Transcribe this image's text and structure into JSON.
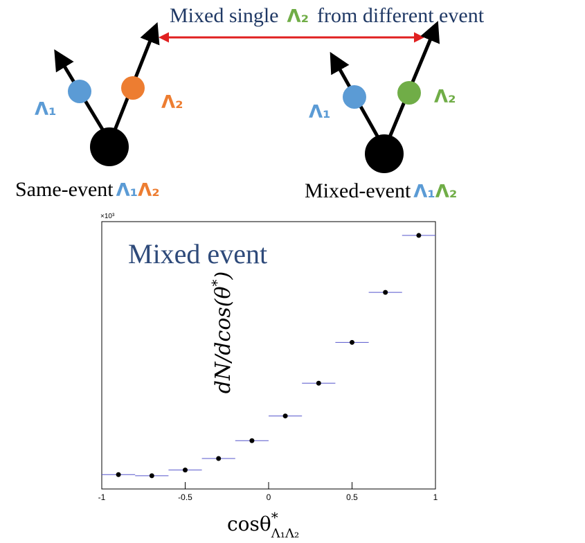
{
  "diagram": {
    "top_label": {
      "text1": "Mixed single",
      "lambda": "Λ₂",
      "text2": "from different event"
    },
    "same_event": {
      "l1": "Λ₁",
      "l2": "Λ₂",
      "caption": "Same-event",
      "pair1": "Λ₁",
      "pair2": "Λ₂"
    },
    "mixed_event": {
      "l1": "Λ₁",
      "l2": "Λ₂",
      "caption": "Mixed-event",
      "pair1": "Λ₁",
      "pair2": "Λ₂"
    }
  },
  "chart_data": {
    "type": "histogram",
    "title": "Mixed event",
    "scale_label": "×10³",
    "ylabel": {
      "base": "dN/dcos(θ",
      "sup": "*",
      "end": ")"
    },
    "xlabel": {
      "base": "cosθ",
      "sup": "*",
      "sub": "Λ₁Λ₂"
    },
    "bins": [
      -1,
      -0.8,
      -0.6,
      -0.4,
      -0.2,
      0,
      0.2,
      0.4,
      0.6,
      0.8,
      1
    ],
    "values": [
      0.25,
      0.23,
      0.33,
      0.53,
      0.84,
      1.27,
      1.84,
      2.55,
      3.42,
      4.41
    ],
    "color": "#5555cc",
    "marker_color": "#000000",
    "xlim": [
      -1,
      1
    ],
    "xticks": [
      -1,
      -0.5,
      0,
      0.5,
      1
    ],
    "ylim": [
      0,
      4.65
    ]
  }
}
